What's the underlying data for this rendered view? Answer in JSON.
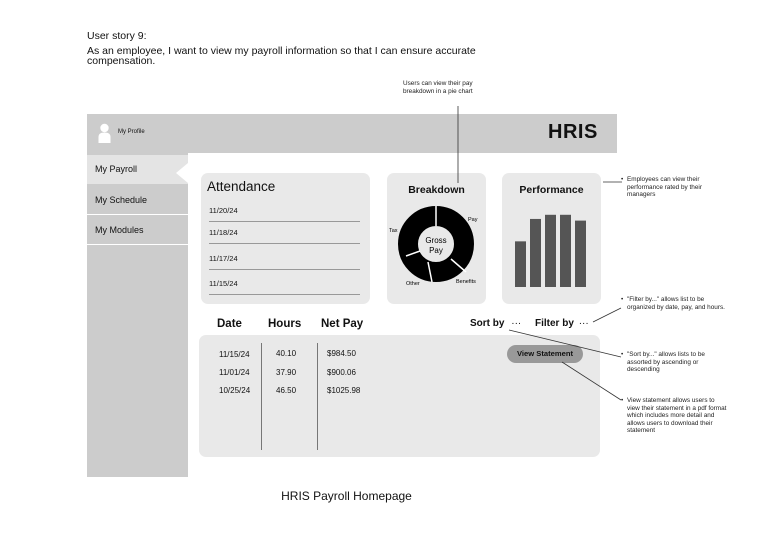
{
  "story": {
    "title": "User story 9:",
    "text": "As an employee, I want to view my payroll information so that I can ensure accurate compensation."
  },
  "notes": {
    "breakdown": "Users can view their pay breakdown in a pie chart",
    "performance": "Employees can view their performance rated by their managers",
    "filter": "\"Filter by...\" allows list to be organized by date, pay, and hours.",
    "sort": "\"Sort by...\" allows lists to be assorted by ascending or descending",
    "statement": "View statement allows users to view their statement in a pdf format which includes more detail and allows users to download their statement"
  },
  "header": {
    "profile_label": "My Profile",
    "brand": "HRIS",
    "avatar_icon": "user-icon"
  },
  "sidebar": {
    "items": [
      {
        "label": "My Payroll",
        "active": true
      },
      {
        "label": "My Schedule",
        "active": false
      },
      {
        "label": "My Modules",
        "active": false
      }
    ]
  },
  "attendance": {
    "title": "Attendance",
    "dates": [
      "11/20/24",
      "11/18/24",
      "11/17/24",
      "11/15/24"
    ]
  },
  "breakdown": {
    "title": "Breakdown",
    "center_label_line1": "Gross",
    "center_label_line2": "Pay",
    "slice_labels": {
      "pay": "Pay",
      "tax": "Tax",
      "other": "Other",
      "benefits": "Benefits"
    },
    "color": "#000000"
  },
  "performance": {
    "title": "Performance",
    "bar_levels": [
      0.55,
      0.82,
      0.87,
      0.87,
      0.8
    ],
    "bar_color": "#555555"
  },
  "payroll": {
    "columns": {
      "date": "Date",
      "hours": "Hours",
      "net_pay": "Net Pay"
    },
    "sort_label": "Sort by",
    "filter_label": "Filter by",
    "more_glyph": "···",
    "rows": [
      {
        "date": "11/15/24",
        "hours": "40.10",
        "net_pay": "$984.50"
      },
      {
        "date": "11/01/24",
        "hours": "37.90",
        "net_pay": "$900.06"
      },
      {
        "date": "10/25/24",
        "hours": "46.50",
        "net_pay": "$1025.98"
      }
    ],
    "view_statement": "View Statement"
  },
  "caption": "HRIS Payroll Homepage"
}
